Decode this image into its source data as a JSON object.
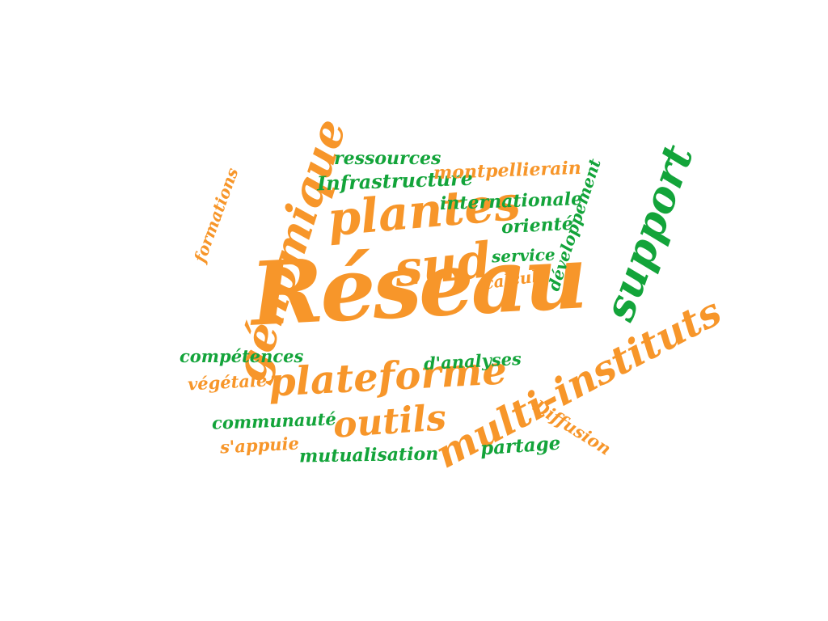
{
  "colors": {
    "orange": "#f7962a",
    "green": "#13a43a",
    "background": "#ffffff"
  },
  "words": {
    "reseau": "Réseau",
    "sud": "sud",
    "plantes": "plantes",
    "genomique": "génomique",
    "plateforme": "plateforme",
    "multi_instituts": "multi-instituts",
    "support": "support",
    "outils": "outils",
    "ressources": "ressources",
    "infrastructure": "Infrastructure",
    "montpellierain": "montpellierain",
    "internationale": "internationale",
    "oriente": "orienté",
    "developpement": "développement",
    "service": "service",
    "calcul": "calcul",
    "formations": "formations",
    "competences": "compétences",
    "d_analyses": "d'analyses",
    "vegetale": "végétale",
    "communaute": "communauté",
    "diffusion": "Diffusion",
    "s_appuie": "s'appuie",
    "mutualisation": "mutualisation",
    "partage": "partage"
  }
}
